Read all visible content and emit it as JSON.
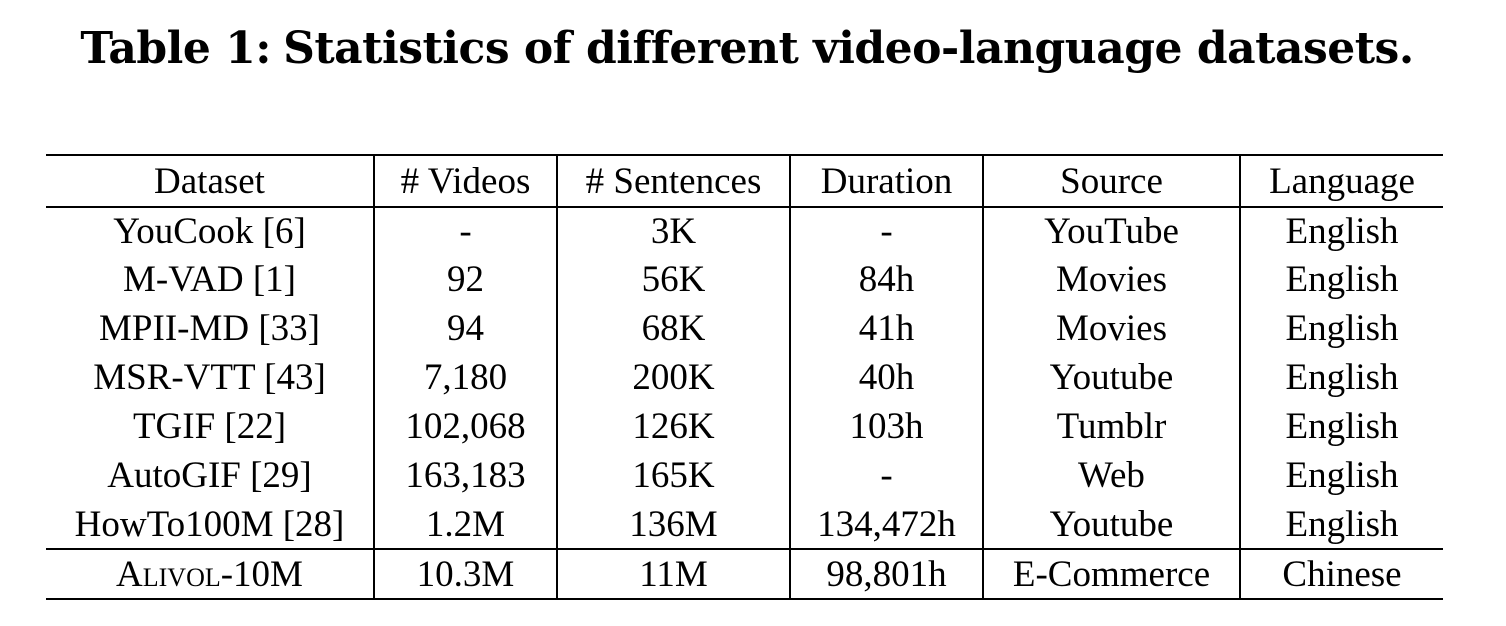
{
  "caption": {
    "label": "Table 1:",
    "text": "Statistics of different video-language datasets."
  },
  "table": {
    "headers": [
      "Dataset",
      "# Videos",
      "# Sentences",
      "Duration",
      "Source",
      "Language"
    ],
    "rows": [
      {
        "dataset": "YouCook [6]",
        "videos": "-",
        "sentences": "3K",
        "duration": "-",
        "source": "YouTube",
        "language": "English"
      },
      {
        "dataset": "M-VAD [1]",
        "videos": "92",
        "sentences": "56K",
        "duration": "84h",
        "source": "Movies",
        "language": "English"
      },
      {
        "dataset": "MPII-MD [33]",
        "videos": "94",
        "sentences": "68K",
        "duration": "41h",
        "source": "Movies",
        "language": "English"
      },
      {
        "dataset": "MSR-VTT [43]",
        "videos": "7,180",
        "sentences": "200K",
        "duration": "40h",
        "source": "Youtube",
        "language": "English"
      },
      {
        "dataset": "TGIF [22]",
        "videos": "102,068",
        "sentences": "126K",
        "duration": "103h",
        "source": "Tumblr",
        "language": "English"
      },
      {
        "dataset": "AutoGIF [29]",
        "videos": "163,183",
        "sentences": "165K",
        "duration": "-",
        "source": "Web",
        "language": "English"
      },
      {
        "dataset": "HowTo100M [28]",
        "videos": "1.2M",
        "sentences": "136M",
        "duration": "134,472h",
        "source": "Youtube",
        "language": "English"
      }
    ],
    "ours": {
      "dataset": "Alivol-10M",
      "videos": "10.3M",
      "sentences": "11M",
      "duration": "98,801h",
      "source": "E-Commerce",
      "language": "Chinese"
    }
  }
}
